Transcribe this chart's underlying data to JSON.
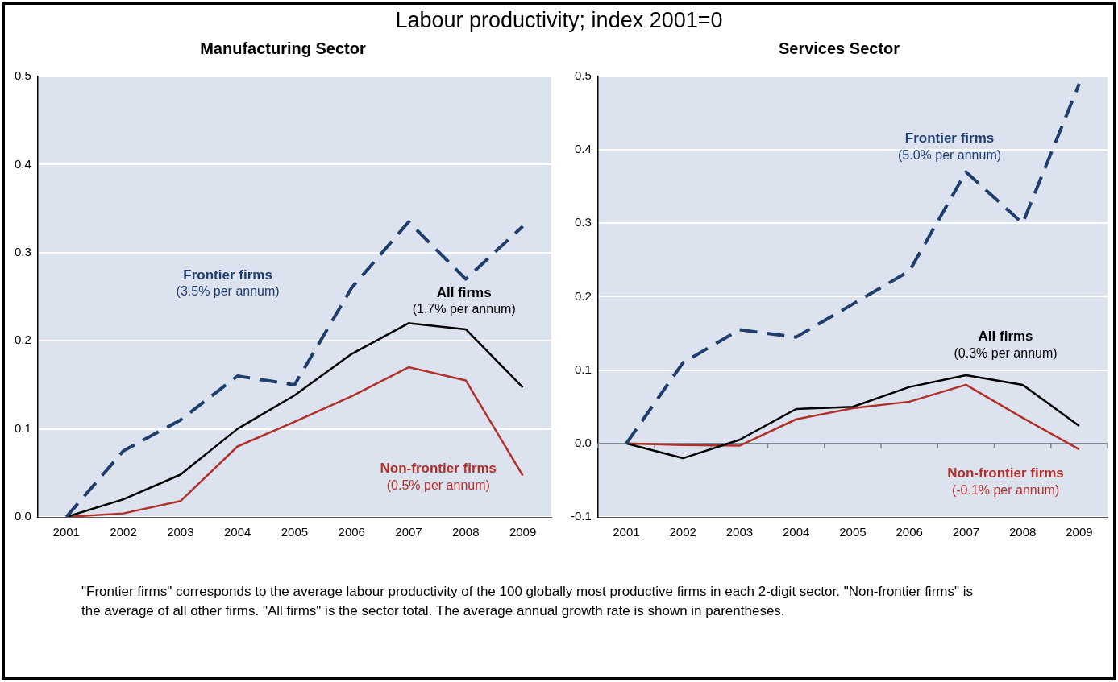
{
  "chart_data": [
    {
      "type": "other",
      "title": "Labour productivity; index 2001=0",
      "annotations": [
        "\"Frontier firms\" corresponds to the average labour productivity of the 100 globally most productive firms in each 2-digit sector. \"Non-frontier firms\" is the average of all other firms. \"All firms\" is the sector total. The average annual growth rate is shown in parentheses."
      ]
    },
    {
      "type": "line",
      "title": "Manufacturing Sector",
      "categories": [
        "2001",
        "2002",
        "2003",
        "2004",
        "2005",
        "2006",
        "2007",
        "2008",
        "2009"
      ],
      "series": [
        {
          "name": "Frontier firms",
          "color": "#1f3e6e",
          "line_style": "dashed",
          "values": [
            0,
            0.075,
            0.11,
            0.16,
            0.15,
            0.26,
            0.335,
            0.27,
            0.33
          ]
        },
        {
          "name": "All firms",
          "color": "#000000",
          "line_style": "solid",
          "values": [
            0,
            0.02,
            0.048,
            0.1,
            0.138,
            0.185,
            0.22,
            0.213,
            0.147
          ]
        },
        {
          "name": "Non-frontier firms",
          "color": "#b0302a",
          "line_style": "solid",
          "values": [
            0,
            0.004,
            0.018,
            0.08,
            0.108,
            0.137,
            0.17,
            0.155,
            0.047
          ]
        }
      ],
      "annotations": [
        "(3.5% per annum)",
        "(1.7% per annum)",
        "(0.5% per annum)"
      ],
      "ylim": [
        0,
        0.5
      ],
      "yticks": [
        {
          "value": 0,
          "label": "0.0"
        },
        0.1,
        0.2,
        0.3,
        0.4,
        0.5
      ],
      "grid": "y",
      "legend": false
    },
    {
      "type": "line",
      "title": "Services Sector",
      "categories": [
        "2001",
        "2002",
        "2003",
        "2004",
        "2005",
        "2006",
        "2007",
        "2008",
        "2009"
      ],
      "series": [
        {
          "name": "Frontier firms",
          "color": "#1f3e6e",
          "line_style": "dashed",
          "values": [
            0,
            0.11,
            0.155,
            0.145,
            0.19,
            0.235,
            0.37,
            0.3,
            0.49
          ]
        },
        {
          "name": "All firms",
          "color": "#000000",
          "line_style": "solid",
          "values": [
            0,
            -0.02,
            0.005,
            0.047,
            0.05,
            0.077,
            0.093,
            0.08,
            0.024
          ]
        },
        {
          "name": "Non-frontier firms",
          "color": "#b0302a",
          "line_style": "solid",
          "values": [
            0,
            -0.002,
            -0.003,
            0.033,
            0.048,
            0.057,
            0.08,
            0.035,
            -0.008
          ]
        }
      ],
      "annotations": [
        "(5.0% per annum)",
        "(0.3% per annum)",
        "(-0.1% per annum)"
      ],
      "ylim": [
        -0.1,
        0.5
      ],
      "yticks": [
        -0.1,
        {
          "value": 0,
          "label": "0.0"
        },
        0.1,
        0.2,
        0.3,
        0.4,
        0.5
      ],
      "grid": "y",
      "legend": false
    }
  ]
}
